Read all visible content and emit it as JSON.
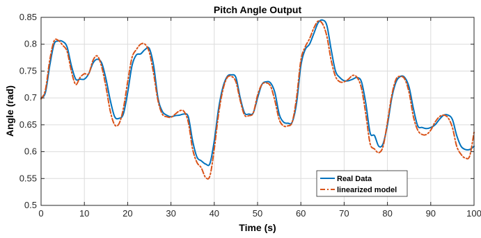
{
  "chart_data": {
    "type": "line",
    "title": "Pitch Angle Output",
    "xlabel": "Time (s)",
    "ylabel": "Angle (rad)",
    "xlim": [
      0,
      100
    ],
    "ylim": [
      0.5,
      0.85
    ],
    "xticks": [
      0,
      10,
      20,
      30,
      40,
      50,
      60,
      70,
      80,
      90,
      100
    ],
    "yticks": [
      0.5,
      0.55,
      0.6,
      0.65,
      0.7,
      0.75,
      0.8,
      0.85
    ],
    "grid": true,
    "legend_position": "bottom-right",
    "series": [
      {
        "name": "Real Data",
        "color": "#0072BD",
        "style": "solid",
        "x": [
          0,
          1,
          2,
          3,
          4,
          5,
          6,
          7,
          8,
          9,
          10,
          11,
          12,
          13,
          14,
          15,
          16,
          17,
          18,
          19,
          20,
          21,
          22,
          23,
          24,
          25,
          26,
          27,
          28,
          29,
          30,
          31,
          32,
          33,
          34,
          35,
          36,
          37,
          38,
          39,
          40,
          41,
          42,
          43,
          44,
          45,
          46,
          47,
          48,
          49,
          50,
          51,
          52,
          53,
          54,
          55,
          56,
          57,
          58,
          59,
          60,
          61,
          62,
          63,
          64,
          65,
          66,
          67,
          68,
          69,
          70,
          71,
          72,
          73,
          74,
          75,
          76,
          77,
          78,
          79,
          80,
          81,
          82,
          83,
          84,
          85,
          86,
          87,
          88,
          89,
          90,
          91,
          92,
          93,
          94,
          95,
          96,
          97,
          98,
          99,
          100
        ],
        "y": [
          0.7,
          0.71,
          0.76,
          0.8,
          0.806,
          0.805,
          0.795,
          0.76,
          0.735,
          0.735,
          0.735,
          0.745,
          0.765,
          0.772,
          0.765,
          0.735,
          0.695,
          0.665,
          0.662,
          0.67,
          0.71,
          0.76,
          0.78,
          0.782,
          0.79,
          0.792,
          0.76,
          0.7,
          0.675,
          0.668,
          0.665,
          0.667,
          0.668,
          0.67,
          0.665,
          0.62,
          0.59,
          0.583,
          0.577,
          0.578,
          0.62,
          0.68,
          0.72,
          0.74,
          0.743,
          0.738,
          0.7,
          0.672,
          0.67,
          0.672,
          0.7,
          0.725,
          0.73,
          0.728,
          0.71,
          0.67,
          0.655,
          0.653,
          0.655,
          0.69,
          0.76,
          0.79,
          0.8,
          0.82,
          0.84,
          0.845,
          0.835,
          0.79,
          0.75,
          0.738,
          0.732,
          0.732,
          0.735,
          0.738,
          0.73,
          0.69,
          0.635,
          0.63,
          0.61,
          0.615,
          0.65,
          0.7,
          0.73,
          0.74,
          0.738,
          0.72,
          0.68,
          0.648,
          0.645,
          0.643,
          0.645,
          0.65,
          0.66,
          0.668,
          0.668,
          0.66,
          0.63,
          0.61,
          0.604,
          0.604,
          0.61
        ]
      },
      {
        "name": "linearized model",
        "color": "#D95319",
        "style": "dashdot",
        "x": [
          0,
          1,
          2,
          3,
          4,
          5,
          6,
          7,
          8,
          9,
          10,
          11,
          12,
          13,
          14,
          15,
          16,
          17,
          18,
          19,
          20,
          21,
          22,
          23,
          24,
          25,
          26,
          27,
          28,
          29,
          30,
          31,
          32,
          33,
          34,
          35,
          36,
          37,
          38,
          39,
          40,
          41,
          42,
          43,
          44,
          45,
          46,
          47,
          48,
          49,
          50,
          51,
          52,
          53,
          54,
          55,
          56,
          57,
          58,
          59,
          60,
          61,
          62,
          63,
          64,
          65,
          66,
          67,
          68,
          69,
          70,
          71,
          72,
          73,
          74,
          75,
          76,
          77,
          78,
          79,
          80,
          81,
          82,
          83,
          84,
          85,
          86,
          87,
          88,
          89,
          90,
          91,
          92,
          93,
          94,
          95,
          96,
          97,
          98,
          99,
          100
        ],
        "y": [
          0.698,
          0.715,
          0.77,
          0.806,
          0.807,
          0.798,
          0.787,
          0.75,
          0.725,
          0.738,
          0.745,
          0.745,
          0.77,
          0.778,
          0.758,
          0.72,
          0.675,
          0.65,
          0.652,
          0.68,
          0.73,
          0.775,
          0.79,
          0.8,
          0.8,
          0.785,
          0.745,
          0.695,
          0.67,
          0.665,
          0.664,
          0.67,
          0.676,
          0.675,
          0.655,
          0.605,
          0.58,
          0.57,
          0.552,
          0.555,
          0.605,
          0.67,
          0.715,
          0.738,
          0.74,
          0.73,
          0.695,
          0.668,
          0.667,
          0.672,
          0.705,
          0.725,
          0.728,
          0.722,
          0.695,
          0.66,
          0.648,
          0.648,
          0.655,
          0.7,
          0.77,
          0.795,
          0.81,
          0.83,
          0.843,
          0.838,
          0.815,
          0.77,
          0.74,
          0.73,
          0.73,
          0.735,
          0.742,
          0.738,
          0.718,
          0.67,
          0.615,
          0.605,
          0.598,
          0.61,
          0.655,
          0.705,
          0.735,
          0.74,
          0.735,
          0.71,
          0.665,
          0.64,
          0.632,
          0.632,
          0.64,
          0.655,
          0.665,
          0.668,
          0.663,
          0.645,
          0.61,
          0.595,
          0.588,
          0.592,
          0.636
        ]
      }
    ]
  }
}
